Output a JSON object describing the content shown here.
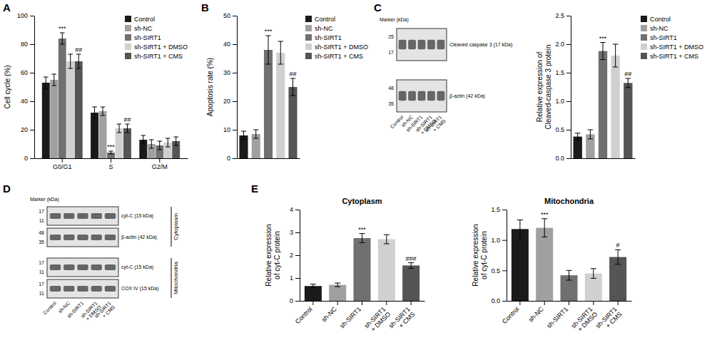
{
  "chart_data": [
    {
      "type": "bar",
      "panel": "A",
      "ylabel": "Cell cycle (%)",
      "categories": [
        "G0/G1",
        "S",
        "G2/M"
      ],
      "series": [
        {
          "name": "Control",
          "color": "#1a1a1a",
          "values": [
            53,
            32,
            13
          ],
          "errors": [
            4,
            4,
            3
          ]
        },
        {
          "name": "sh-NC",
          "color": "#a0a0a0",
          "values": [
            55,
            33,
            10
          ],
          "errors": [
            4,
            3,
            3
          ]
        },
        {
          "name": "sh-SIRT1",
          "color": "#707070",
          "values": [
            84,
            4,
            9
          ],
          "errors": [
            4,
            1,
            3
          ]
        },
        {
          "name": "sh-SIRT1 + DMSO",
          "color": "#d0d0d0",
          "values": [
            68,
            21,
            11
          ],
          "errors": [
            5,
            3,
            3
          ]
        },
        {
          "name": "sh-SIRT1 + CMS",
          "color": "#555555",
          "values": [
            68,
            21,
            12
          ],
          "errors": [
            5,
            3,
            3
          ]
        }
      ],
      "ylim": [
        0,
        100
      ],
      "yticks": [
        0,
        20,
        40,
        60,
        80,
        100
      ],
      "legend": "upper right",
      "annotations": [
        {
          "text": "***",
          "category": "G0/G1",
          "series": "sh-SIRT1"
        },
        {
          "text": "##",
          "category": "G0/G1",
          "series": "sh-SIRT1 + CMS"
        },
        {
          "text": "***",
          "category": "S",
          "series": "sh-SIRT1"
        },
        {
          "text": "##",
          "category": "S",
          "series": "sh-SIRT1 + CMS"
        }
      ]
    },
    {
      "type": "bar",
      "panel": "B",
      "ylabel": "Apoptosis rate (%)",
      "categories": [
        "Control",
        "sh-NC",
        "sh-SIRT1",
        "sh-SIRT1 + DMSO",
        "sh-SIRT1 + CMS"
      ],
      "values": [
        8,
        8.5,
        38,
        37,
        25
      ],
      "errors": [
        1.5,
        1.5,
        5,
        4,
        3
      ],
      "colors": [
        "#1a1a1a",
        "#a0a0a0",
        "#707070",
        "#d0d0d0",
        "#555555"
      ],
      "ylim": [
        0,
        50
      ],
      "yticks": [
        0,
        10,
        20,
        30,
        40,
        50
      ],
      "tick_labels": "y",
      "legend": "upper right",
      "annotations": [
        {
          "text": "***",
          "category": "sh-SIRT1"
        },
        {
          "text": "##",
          "category": "sh-SIRT1 + CMS"
        }
      ]
    },
    {
      "type": "blot",
      "panel": "C",
      "ylabel": "Marker (kDa)",
      "categories": [
        "Control",
        "sh-NC",
        "sh-SIRT1",
        "sh-SIRT1\n+ DMSO",
        "sh-SIRT1\n+ CMS"
      ],
      "marker_labels": [
        [
          "25",
          "17"
        ],
        [
          "48",
          "35"
        ]
      ],
      "band_labels": [
        "Cleaved caspase 3 (17 kDa)",
        "β-actin (42 kDa)"
      ]
    },
    {
      "type": "bar",
      "ylabel": "Relative expression of\nCleaved-caspase 3 protein",
      "categories": [
        "Control",
        "sh-NC",
        "sh-SIRT1",
        "sh-SIRT1 + DMSO",
        "sh-SIRT1 + CMS"
      ],
      "values": [
        0.38,
        0.42,
        1.88,
        1.8,
        1.32
      ],
      "errors": [
        0.06,
        0.08,
        0.15,
        0.2,
        0.08
      ],
      "colors": [
        "#1a1a1a",
        "#a0a0a0",
        "#707070",
        "#d0d0d0",
        "#555555"
      ],
      "ylim": [
        0,
        2.5
      ],
      "yticks": [
        {
          "value": 0,
          "label": "0.0"
        },
        0.5,
        {
          "value": 1,
          "label": "1.0"
        },
        1.5,
        {
          "value": 2,
          "label": "2.0"
        },
        2.5
      ],
      "tick_labels": "y",
      "legend": "upper right",
      "annotations": [
        {
          "text": "***",
          "category": "sh-SIRT1"
        },
        {
          "text": "##",
          "category": "sh-SIRT1 + CMS"
        }
      ]
    },
    {
      "type": "blot",
      "panel": "D",
      "ylabel": "Marker (kDa)",
      "categories": [
        "Control",
        "sh-NC",
        "sh-SIRT1",
        "sh-SIRT1\n+ DMSO",
        "sh-SIRT1\n+ CMS"
      ],
      "marker_labels": [
        [
          "17",
          "11"
        ],
        [
          "48",
          "35"
        ],
        [
          "17",
          "11"
        ],
        [
          "17",
          "11"
        ]
      ],
      "band_labels": [
        "cyt-C (15 kDa)",
        "β-actin (42 kDa)",
        "cyt-C (15 kDa)",
        "COX IV (15 kDa)"
      ],
      "side_labels": [
        "Cytoplasm",
        "Mitochondria"
      ]
    },
    {
      "type": "bar",
      "panel": "E",
      "title": "Cytoplasm",
      "ylabel": "Relative expression\nof cyt-C protein",
      "categories": [
        "Control",
        "sh-NC",
        "sh-SIRT1",
        "sh-SIRT1\n+ DMSO",
        "sh-SIRT1\n+ CMS"
      ],
      "values": [
        0.65,
        0.7,
        2.75,
        2.7,
        1.55
      ],
      "errors": [
        0.08,
        0.08,
        0.2,
        0.2,
        0.12
      ],
      "colors": [
        "#1a1a1a",
        "#a0a0a0",
        "#707070",
        "#d0d0d0",
        "#555555"
      ],
      "ylim": [
        0,
        4
      ],
      "yticks": [
        0,
        1,
        2,
        3,
        4
      ],
      "annotations": [
        {
          "text": "***",
          "category": "sh-SIRT1"
        },
        {
          "text": "###",
          "category": "sh-SIRT1\n+ CMS"
        }
      ]
    },
    {
      "type": "bar",
      "title": "Mitochondria",
      "ylabel": "Relative expression\nof cyt-C protein",
      "categories": [
        "Control",
        "sh-NC",
        "sh-SIRT1",
        "sh-SIRT1\n+ DMSO",
        "sh-SIRT1\n+ CMS"
      ],
      "values": [
        1.18,
        1.2,
        0.42,
        0.45,
        0.72
      ],
      "errors": [
        0.15,
        0.15,
        0.08,
        0.08,
        0.12
      ],
      "colors": [
        "#1a1a1a",
        "#a0a0a0",
        "#707070",
        "#d0d0d0",
        "#555555"
      ],
      "ylim": [
        0,
        1.5
      ],
      "yticks": [
        {
          "value": 0,
          "label": "0.0"
        },
        0.5,
        {
          "value": 1,
          "label": "1.0"
        },
        1.5
      ],
      "annotations": [
        {
          "text": "***",
          "category": "sh-NC"
        },
        {
          "text": "#",
          "category": "sh-SIRT1\n+ CMS"
        }
      ]
    }
  ]
}
